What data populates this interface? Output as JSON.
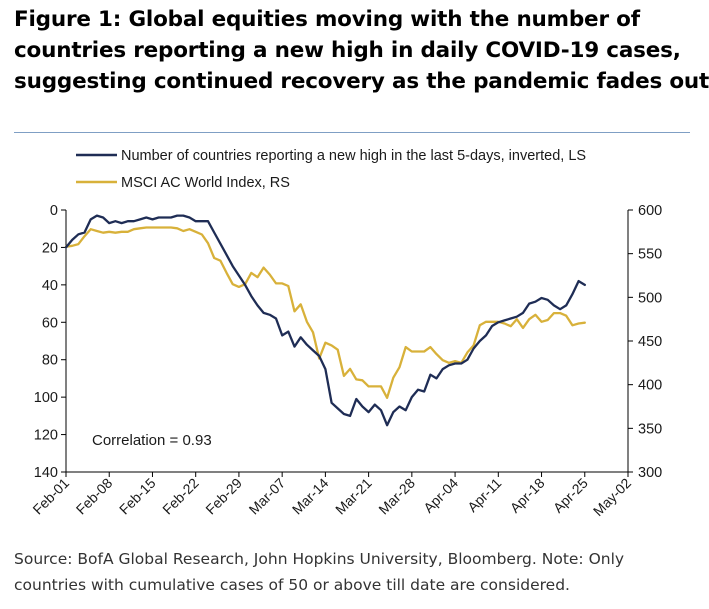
{
  "title_lines": [
    "Figure 1:  Global equities moving with the number of",
    "countries reporting a new high in daily COVID-19 cases,",
    "suggesting continued recovery as the pandemic fades out"
  ],
  "source_lines": [
    "Source: BofA Global Research, John Hopkins University, Bloomberg. Note: Only",
    "countries with cumulative cases of 50 or above till date are considered."
  ],
  "colors": {
    "series_countries": "#1f2d55",
    "series_msci": "#d8b13a",
    "axis": "#000000"
  },
  "chart_data": {
    "type": "line",
    "title": "Figure 1:  Global equities moving with the number of countries reporting a new high in daily COVID-19 cases, suggesting continued recovery as the pandemic fades out",
    "x_tick_labels": [
      "Feb-01",
      "Feb-08",
      "Feb-15",
      "Feb-22",
      "Feb-29",
      "Mar-07",
      "Mar-14",
      "Mar-21",
      "Mar-28",
      "Apr-04",
      "Apr-11",
      "Apr-18",
      "Apr-25",
      "May-02"
    ],
    "x_unit": "days since Feb-01",
    "xlim": [
      0,
      91
    ],
    "left_axis": {
      "ylim": [
        0,
        140
      ],
      "inverted": true,
      "ticks": [
        0,
        20,
        40,
        60,
        80,
        100,
        120,
        140
      ]
    },
    "right_axis": {
      "ylim": [
        300,
        600
      ],
      "inverted": false,
      "ticks": [
        300,
        350,
        400,
        450,
        500,
        550,
        600
      ]
    },
    "legend": {
      "placement": "top-left"
    },
    "annotation": "Correlation  =  0.93",
    "series": [
      {
        "name": "Number of countries reporting a new high in the last 5-days, inverted, LS",
        "axis": "left",
        "x": [
          0,
          1,
          2,
          3,
          4,
          5,
          6,
          7,
          8,
          9,
          10,
          11,
          12,
          13,
          14,
          15,
          16,
          17,
          18,
          19,
          20,
          21,
          22,
          23,
          24,
          25,
          26,
          27,
          28,
          29,
          30,
          31,
          32,
          33,
          34,
          35,
          36,
          37,
          38,
          39,
          40,
          41,
          42,
          43,
          44,
          45,
          46,
          47,
          48,
          49,
          50,
          51,
          52,
          53,
          54,
          55,
          56,
          57,
          58,
          59,
          60,
          61,
          62,
          63,
          64,
          65,
          66,
          67,
          68,
          69,
          70,
          71,
          72,
          73,
          74,
          75,
          76,
          77,
          78,
          79,
          80,
          81,
          82,
          83,
          84
        ],
        "values": [
          20,
          16,
          13,
          12,
          5,
          3,
          4,
          7,
          6,
          7,
          6,
          6,
          5,
          4,
          5,
          4,
          4,
          4,
          3,
          3,
          4,
          6,
          6,
          6,
          12,
          18,
          24,
          30,
          35,
          40,
          46,
          51,
          55,
          56,
          58,
          67,
          65,
          73,
          68,
          72,
          75,
          78,
          85,
          103,
          106,
          109,
          110,
          101,
          105,
          108,
          104,
          107,
          115,
          108,
          105,
          107,
          100,
          96,
          97,
          88,
          90,
          85,
          83,
          82,
          82,
          80,
          74,
          70,
          67,
          62,
          60,
          59,
          58,
          57,
          55,
          50,
          49,
          47,
          48,
          51,
          53,
          51,
          45,
          38,
          40
        ]
      },
      {
        "name": "MSCI AC World Index, RS",
        "axis": "right",
        "x": [
          0,
          1,
          2,
          3,
          4,
          5,
          6,
          7,
          8,
          9,
          10,
          11,
          12,
          13,
          14,
          15,
          16,
          17,
          18,
          19,
          20,
          21,
          22,
          23,
          24,
          25,
          26,
          27,
          28,
          29,
          30,
          31,
          32,
          33,
          34,
          35,
          36,
          37,
          38,
          39,
          40,
          41,
          42,
          43,
          44,
          45,
          46,
          47,
          48,
          49,
          50,
          51,
          52,
          53,
          54,
          55,
          56,
          57,
          58,
          59,
          60,
          61,
          62,
          63,
          64,
          65,
          66,
          67,
          68,
          69,
          70,
          71,
          72,
          73,
          74,
          75,
          76,
          77,
          78,
          79,
          80,
          81,
          82,
          83,
          84
        ],
        "values": [
          558,
          559,
          561,
          570,
          578,
          576,
          574,
          575,
          574,
          575,
          575,
          578,
          579,
          580,
          580,
          580,
          580,
          580,
          579,
          576,
          578,
          575,
          572,
          562,
          545,
          542,
          528,
          515,
          512,
          515,
          528,
          523,
          534,
          526,
          516,
          516,
          513,
          484,
          492,
          472,
          460,
          430,
          448,
          445,
          440,
          410,
          418,
          406,
          405,
          398,
          398,
          398,
          385,
          408,
          420,
          443,
          438,
          438,
          438,
          443,
          435,
          428,
          425,
          427,
          425,
          437,
          445,
          468,
          472,
          472,
          472,
          470,
          467,
          475,
          465,
          475,
          480,
          472,
          474,
          482,
          482,
          479,
          468,
          470,
          471
        ]
      }
    ]
  }
}
